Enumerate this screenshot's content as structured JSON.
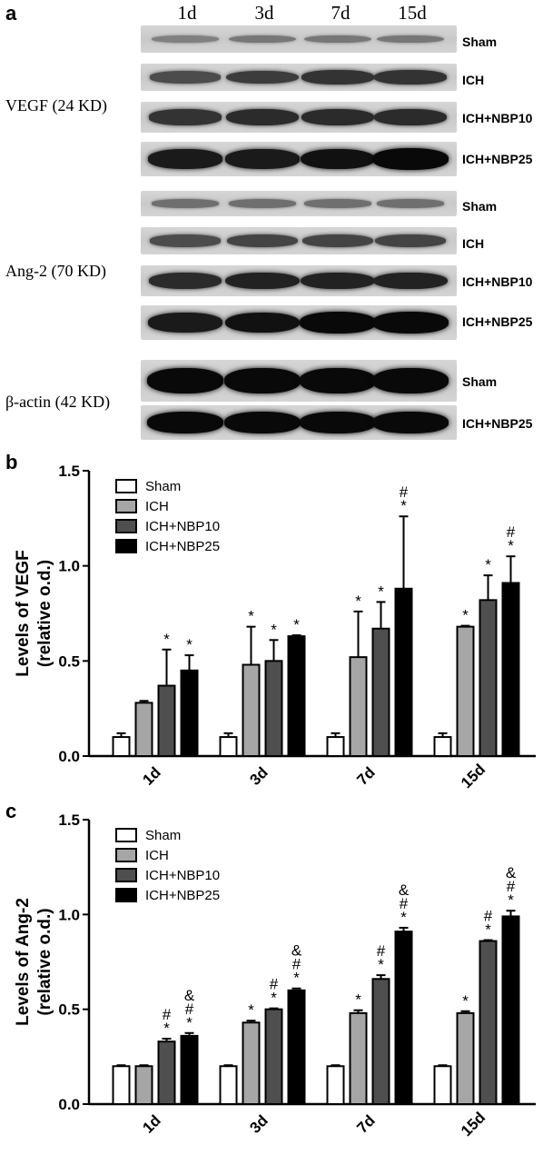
{
  "panel_a": {
    "letter": "a",
    "lanes": [
      "1d",
      "3d",
      "7d",
      "15d"
    ],
    "proteins": [
      {
        "label": "VEGF (24 KD)",
        "groups": [
          "Sham",
          "ICH",
          "ICH+NBP10",
          "ICH+NBP25"
        ],
        "intensity": [
          [
            0.25,
            0.3,
            0.3,
            0.3
          ],
          [
            0.55,
            0.65,
            0.7,
            0.7
          ],
          [
            0.7,
            0.75,
            0.75,
            0.75
          ],
          [
            0.85,
            0.85,
            0.9,
            0.95
          ]
        ]
      },
      {
        "label": "Ang-2 (70 KD)",
        "groups": [
          "Sham",
          "ICH",
          "ICH+NBP10",
          "ICH+NBP25"
        ],
        "intensity": [
          [
            0.35,
            0.35,
            0.35,
            0.35
          ],
          [
            0.55,
            0.6,
            0.6,
            0.6
          ],
          [
            0.75,
            0.8,
            0.8,
            0.8
          ],
          [
            0.85,
            0.9,
            0.95,
            0.95
          ]
        ]
      },
      {
        "label": "β-actin (42 KD)",
        "groups": [
          "Sham",
          "ICH+NBP25"
        ],
        "intensity": [
          [
            0.95,
            0.95,
            0.95,
            0.95
          ],
          [
            0.95,
            0.95,
            0.95,
            0.95
          ]
        ]
      }
    ]
  },
  "chart_data": [
    {
      "type": "bar",
      "panel": "b",
      "ylabel": [
        "Levels of VEGF",
        "(relative o.d.)"
      ],
      "categories": [
        "1d",
        "3d",
        "7d",
        "15d"
      ],
      "ylim": [
        0,
        1.5
      ],
      "yticks": [
        "0.0",
        "0.5",
        "1.0",
        "1.5"
      ],
      "series": [
        {
          "name": "Sham",
          "color": "#ffffff",
          "values": [
            0.1,
            0.1,
            0.1,
            0.1
          ],
          "errors": [
            0.02,
            0.02,
            0.02,
            0.02
          ],
          "marks": [
            "",
            "",
            "",
            ""
          ]
        },
        {
          "name": "ICH",
          "color": "#a6a6a6",
          "values": [
            0.28,
            0.48,
            0.52,
            0.68
          ],
          "errors": [
            0.01,
            0.2,
            0.24,
            0.005
          ],
          "marks": [
            "",
            "*",
            "*",
            "*"
          ]
        },
        {
          "name": "ICH+NBP10",
          "color": "#4f4f4f",
          "values": [
            0.37,
            0.5,
            0.67,
            0.82
          ],
          "errors": [
            0.19,
            0.11,
            0.14,
            0.13
          ],
          "marks": [
            "*",
            "*",
            "*",
            "*"
          ]
        },
        {
          "name": "ICH+NBP25",
          "color": "#000000",
          "values": [
            0.45,
            0.63,
            0.88,
            0.91
          ],
          "errors": [
            0.08,
            0.005,
            0.38,
            0.14
          ],
          "marks": [
            "*",
            "*",
            "#\n*",
            "#\n*"
          ]
        }
      ],
      "grid": false,
      "legend": "top-left"
    },
    {
      "type": "bar",
      "panel": "c",
      "ylabel": [
        "Levels of Ang-2",
        "(relative o.d.)"
      ],
      "categories": [
        "1d",
        "3d",
        "7d",
        "15d"
      ],
      "ylim": [
        0,
        1.5
      ],
      "yticks": [
        "0.0",
        "0.5",
        "1.0",
        "1.5"
      ],
      "series": [
        {
          "name": "Sham",
          "color": "#ffffff",
          "values": [
            0.2,
            0.2,
            0.2,
            0.2
          ],
          "errors": [
            0.005,
            0.005,
            0.005,
            0.005
          ],
          "marks": [
            "",
            "",
            "",
            ""
          ]
        },
        {
          "name": "ICH",
          "color": "#a6a6a6",
          "values": [
            0.2,
            0.43,
            0.48,
            0.48
          ],
          "errors": [
            0.005,
            0.01,
            0.015,
            0.01
          ],
          "marks": [
            "",
            "*",
            "*",
            "*"
          ]
        },
        {
          "name": "ICH+NBP10",
          "color": "#4f4f4f",
          "values": [
            0.33,
            0.5,
            0.66,
            0.86
          ],
          "errors": [
            0.015,
            0.005,
            0.02,
            0.005
          ],
          "marks": [
            "#\n*",
            "#\n*",
            "#\n*",
            "#\n*"
          ]
        },
        {
          "name": "ICH+NBP25",
          "color": "#000000",
          "values": [
            0.36,
            0.6,
            0.91,
            0.99
          ],
          "errors": [
            0.015,
            0.01,
            0.02,
            0.03
          ],
          "marks": [
            "&\n#\n*",
            "&\n#\n*",
            "&\n#\n*",
            "&\n#\n*"
          ]
        }
      ],
      "grid": false,
      "legend": "top-left"
    }
  ]
}
